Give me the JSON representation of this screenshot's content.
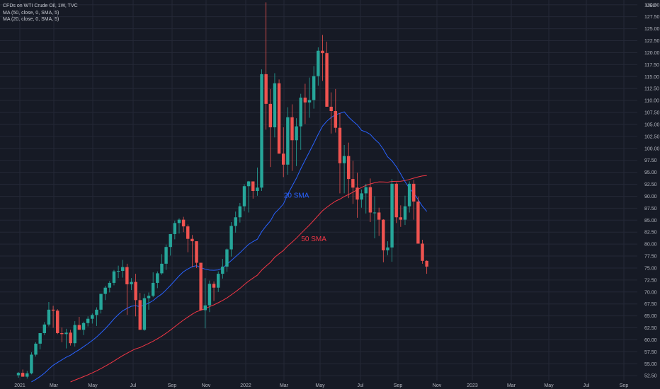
{
  "colors": {
    "background": "#161a25",
    "grid": "#242836",
    "axis_text": "#b2b5be",
    "candle_up": "#26a69a",
    "candle_down": "#ef5350",
    "sma20": "#2962ff",
    "sma50": "#f23645"
  },
  "legend": {
    "title": "CFDs on WTI Crude Oil, 1W, TVC",
    "ma50": "MA (50, close, 0, SMA, 5)",
    "ma20": "MA (20, close, 0, SMA, 5)"
  },
  "chart_data": {
    "type": "candlestick",
    "currency_label": "USD",
    "y_ticks": [
      52.5,
      55,
      57.5,
      60,
      62.5,
      65,
      67.5,
      70,
      72.5,
      75,
      77.5,
      80,
      82.5,
      85,
      87.5,
      90,
      92.5,
      95,
      97.5,
      100,
      102.5,
      105,
      107.5,
      110,
      112.5,
      115,
      117.5,
      120,
      122.5,
      125,
      127.5,
      130
    ],
    "ylim": [
      51.5,
      131
    ],
    "x_ticks": [
      "2021",
      "Mar",
      "May",
      "Jul",
      "Sep",
      "Nov",
      "2022",
      "Mar",
      "May",
      "Jul",
      "Sep",
      "Nov",
      "2023",
      "Mar",
      "May",
      "Jul",
      "Sep"
    ],
    "annotations": [
      {
        "text": "20 SMA",
        "color": "#2962ff",
        "week": 64,
        "price": 89.7
      },
      {
        "text": "50 SMA",
        "color": "#f23645",
        "week": 68,
        "price": 80.6
      }
    ],
    "candles_weekly_ohlc": [
      [
        52.6,
        53.3,
        52.1,
        53.1
      ],
      [
        53.1,
        53.8,
        52.5,
        52.3
      ],
      [
        52.3,
        53.5,
        51.9,
        53.0
      ],
      [
        53.0,
        57.4,
        52.8,
        56.9
      ],
      [
        56.9,
        59.5,
        56.5,
        59.2
      ],
      [
        59.2,
        61.1,
        58.0,
        61.4
      ],
      [
        61.4,
        63.7,
        61.0,
        63.2
      ],
      [
        63.2,
        67.9,
        62.8,
        66.3
      ],
      [
        66.3,
        67.1,
        62.5,
        66.1
      ],
      [
        66.1,
        66.4,
        61.2,
        61.4
      ],
      [
        61.4,
        62.6,
        59.5,
        61.2
      ],
      [
        61.2,
        62.3,
        58.2,
        61.5
      ],
      [
        61.5,
        62.1,
        58.8,
        59.3
      ],
      [
        59.3,
        63.9,
        58.6,
        63.1
      ],
      [
        63.1,
        64.8,
        62.5,
        62.1
      ],
      [
        62.1,
        63.8,
        61.0,
        63.5
      ],
      [
        63.5,
        64.9,
        62.8,
        64.4
      ],
      [
        64.4,
        65.5,
        63.4,
        65.2
      ],
      [
        65.2,
        66.8,
        62.9,
        66.3
      ],
      [
        66.3,
        69.6,
        65.5,
        69.6
      ],
      [
        69.6,
        71.3,
        68.3,
        70.9
      ],
      [
        70.9,
        72.3,
        69.9,
        71.9
      ],
      [
        71.9,
        74.6,
        71.4,
        74.3
      ],
      [
        74.3,
        75.5,
        72.9,
        74.4
      ],
      [
        74.4,
        76.7,
        73.0,
        75.2
      ],
      [
        75.2,
        75.9,
        65.2,
        71.6
      ],
      [
        71.6,
        72.9,
        70.4,
        72.1
      ],
      [
        72.1,
        73.8,
        64.9,
        68.3
      ],
      [
        68.3,
        69.8,
        62.4,
        62.1
      ],
      [
        62.1,
        69.6,
        61.9,
        68.7
      ],
      [
        68.7,
        69.9,
        66.3,
        69.2
      ],
      [
        69.2,
        74.1,
        68.9,
        71.9
      ],
      [
        71.9,
        74.3,
        70.8,
        73.9
      ],
      [
        73.9,
        77.9,
        73.6,
        75.9
      ],
      [
        75.9,
        79.9,
        74.6,
        79.4
      ],
      [
        79.4,
        82.1,
        77.6,
        82.1
      ],
      [
        82.1,
        84.9,
        81.0,
        84.4
      ],
      [
        84.4,
        85.4,
        82.2,
        85.1
      ],
      [
        85.1,
        85.7,
        82.5,
        83.7
      ],
      [
        83.7,
        84.1,
        78.3,
        81.1
      ],
      [
        81.1,
        81.9,
        75.2,
        80.6
      ],
      [
        80.6,
        79.1,
        75.0,
        76.1
      ],
      [
        76.1,
        75.9,
        68.0,
        66.2
      ],
      [
        66.2,
        72.9,
        62.4,
        67.2
      ],
      [
        67.2,
        72.4,
        65.8,
        71.7
      ],
      [
        71.7,
        72.2,
        68.1,
        70.9
      ],
      [
        70.9,
        74.3,
        70.0,
        73.8
      ],
      [
        73.8,
        76.9,
        72.8,
        75.3
      ],
      [
        75.3,
        79.1,
        74.2,
        78.9
      ],
      [
        78.9,
        84.6,
        77.4,
        83.8
      ],
      [
        83.8,
        86.8,
        82.4,
        85.6
      ],
      [
        85.6,
        88.6,
        84.5,
        87.9
      ],
      [
        87.9,
        92.5,
        86.9,
        92.1
      ],
      [
        92.1,
        93.2,
        86.6,
        93.1
      ],
      [
        93.1,
        92.2,
        89.5,
        91.1
      ],
      [
        91.1,
        96.0,
        90.1,
        91.8
      ],
      [
        91.8,
        116.5,
        91.1,
        115.5
      ],
      [
        115.5,
        130.5,
        103.9,
        109.3
      ],
      [
        109.3,
        112.4,
        96.1,
        104.4
      ],
      [
        104.4,
        115.7,
        102.3,
        113.6
      ],
      [
        113.6,
        114.4,
        99.3,
        98.9
      ],
      [
        98.9,
        104.4,
        94.0,
        96.6
      ],
      [
        96.6,
        108.6,
        94.5,
        106.5
      ],
      [
        106.5,
        109.2,
        95.3,
        101.7
      ],
      [
        101.7,
        106.3,
        96.3,
        104.6
      ],
      [
        104.6,
        111.4,
        99.7,
        110.6
      ],
      [
        110.6,
        113.5,
        105.1,
        109.6
      ],
      [
        109.6,
        114.8,
        106.4,
        110.1
      ],
      [
        110.1,
        117.2,
        108.3,
        115.1
      ],
      [
        115.1,
        121.1,
        113.1,
        120.4
      ],
      [
        120.4,
        123.7,
        114.1,
        119.9
      ],
      [
        119.9,
        122.3,
        108.9,
        108.7
      ],
      [
        108.7,
        111.7,
        103.1,
        107.8
      ],
      [
        107.8,
        112.4,
        103.3,
        104.3
      ],
      [
        104.3,
        107.4,
        90.6,
        96.9
      ],
      [
        96.9,
        100.7,
        90.6,
        98.4
      ],
      [
        98.4,
        101.2,
        89.6,
        93.6
      ],
      [
        93.6,
        97.4,
        88.4,
        91.8
      ],
      [
        91.8,
        94.9,
        85.5,
        89.3
      ],
      [
        89.3,
        91.4,
        87.6,
        90.6
      ],
      [
        90.6,
        92.6,
        86.4,
        91.9
      ],
      [
        91.9,
        93.7,
        84.6,
        86.6
      ],
      [
        86.6,
        90.0,
        81.2,
        86.6
      ],
      [
        86.6,
        87.6,
        81.7,
        85.1
      ],
      [
        85.1,
        85.2,
        76.2,
        78.7
      ],
      [
        78.7,
        80.6,
        77.7,
        79.3
      ],
      [
        79.3,
        93.6,
        76.3,
        92.6
      ],
      [
        92.6,
        92.9,
        84.4,
        85.6
      ],
      [
        85.6,
        88.1,
        83.6,
        85.1
      ],
      [
        85.1,
        90.1,
        84.0,
        87.9
      ],
      [
        87.9,
        93.1,
        86.6,
        92.6
      ],
      [
        92.6,
        93.4,
        85.1,
        88.9
      ],
      [
        88.9,
        89.9,
        80.2,
        80.1
      ],
      [
        80.1,
        80.9,
        75.9,
        76.5
      ],
      [
        76.5,
        76.6,
        73.8,
        75.3
      ]
    ]
  }
}
